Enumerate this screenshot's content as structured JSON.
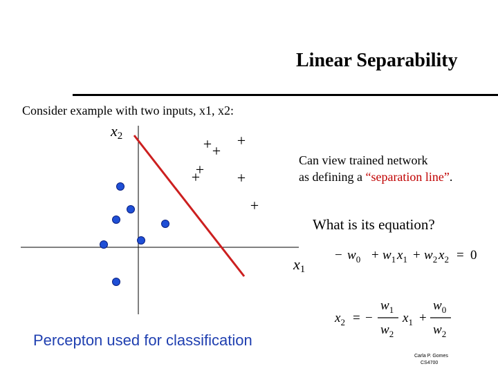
{
  "slide": {
    "title": "Linear Separability",
    "intro": "Consider example with two inputs, x1, x2:",
    "note": {
      "line1": "Can view trained network",
      "line2_prefix": "as defining a ",
      "line2_quote": "“separation line”",
      "line2_suffix": "."
    },
    "question": "What is its equation?",
    "footer": "Percepton used for classification",
    "credit": {
      "author": "Carla P. Gomes",
      "course": "CS4700"
    }
  },
  "plot": {
    "x_axis_label": {
      "base": "x",
      "sub": "1"
    },
    "y_axis_label": {
      "base": "x",
      "sub": "2"
    },
    "plus_symbol": "+",
    "colors": {
      "dot": "#1f4fd6",
      "separator": "#cc1f1f",
      "axis": "#000000"
    }
  },
  "equations": {
    "eq1": {
      "w0": "w",
      "w0_sub": "0",
      "w1": "w",
      "w1_sub": "1",
      "x1": "x",
      "x1_sub": "1",
      "w2": "w",
      "w2_sub": "2",
      "x2": "x",
      "x2_sub": "2",
      "op_minus": "−",
      "op_plus1": "+",
      "op_plus2": "+",
      "eq": "=",
      "zero": "0"
    },
    "eq2": {
      "lhs": "x",
      "lhs_sub": "2",
      "eq": "=",
      "minus": "−",
      "n1": "w",
      "n1_sub": "1",
      "d1": "w",
      "d1_sub": "2",
      "x1": "x",
      "x1_sub": "1",
      "plus": "+",
      "n2": "w",
      "n2_sub": "0",
      "d2": "w",
      "d2_sub": "2"
    }
  }
}
